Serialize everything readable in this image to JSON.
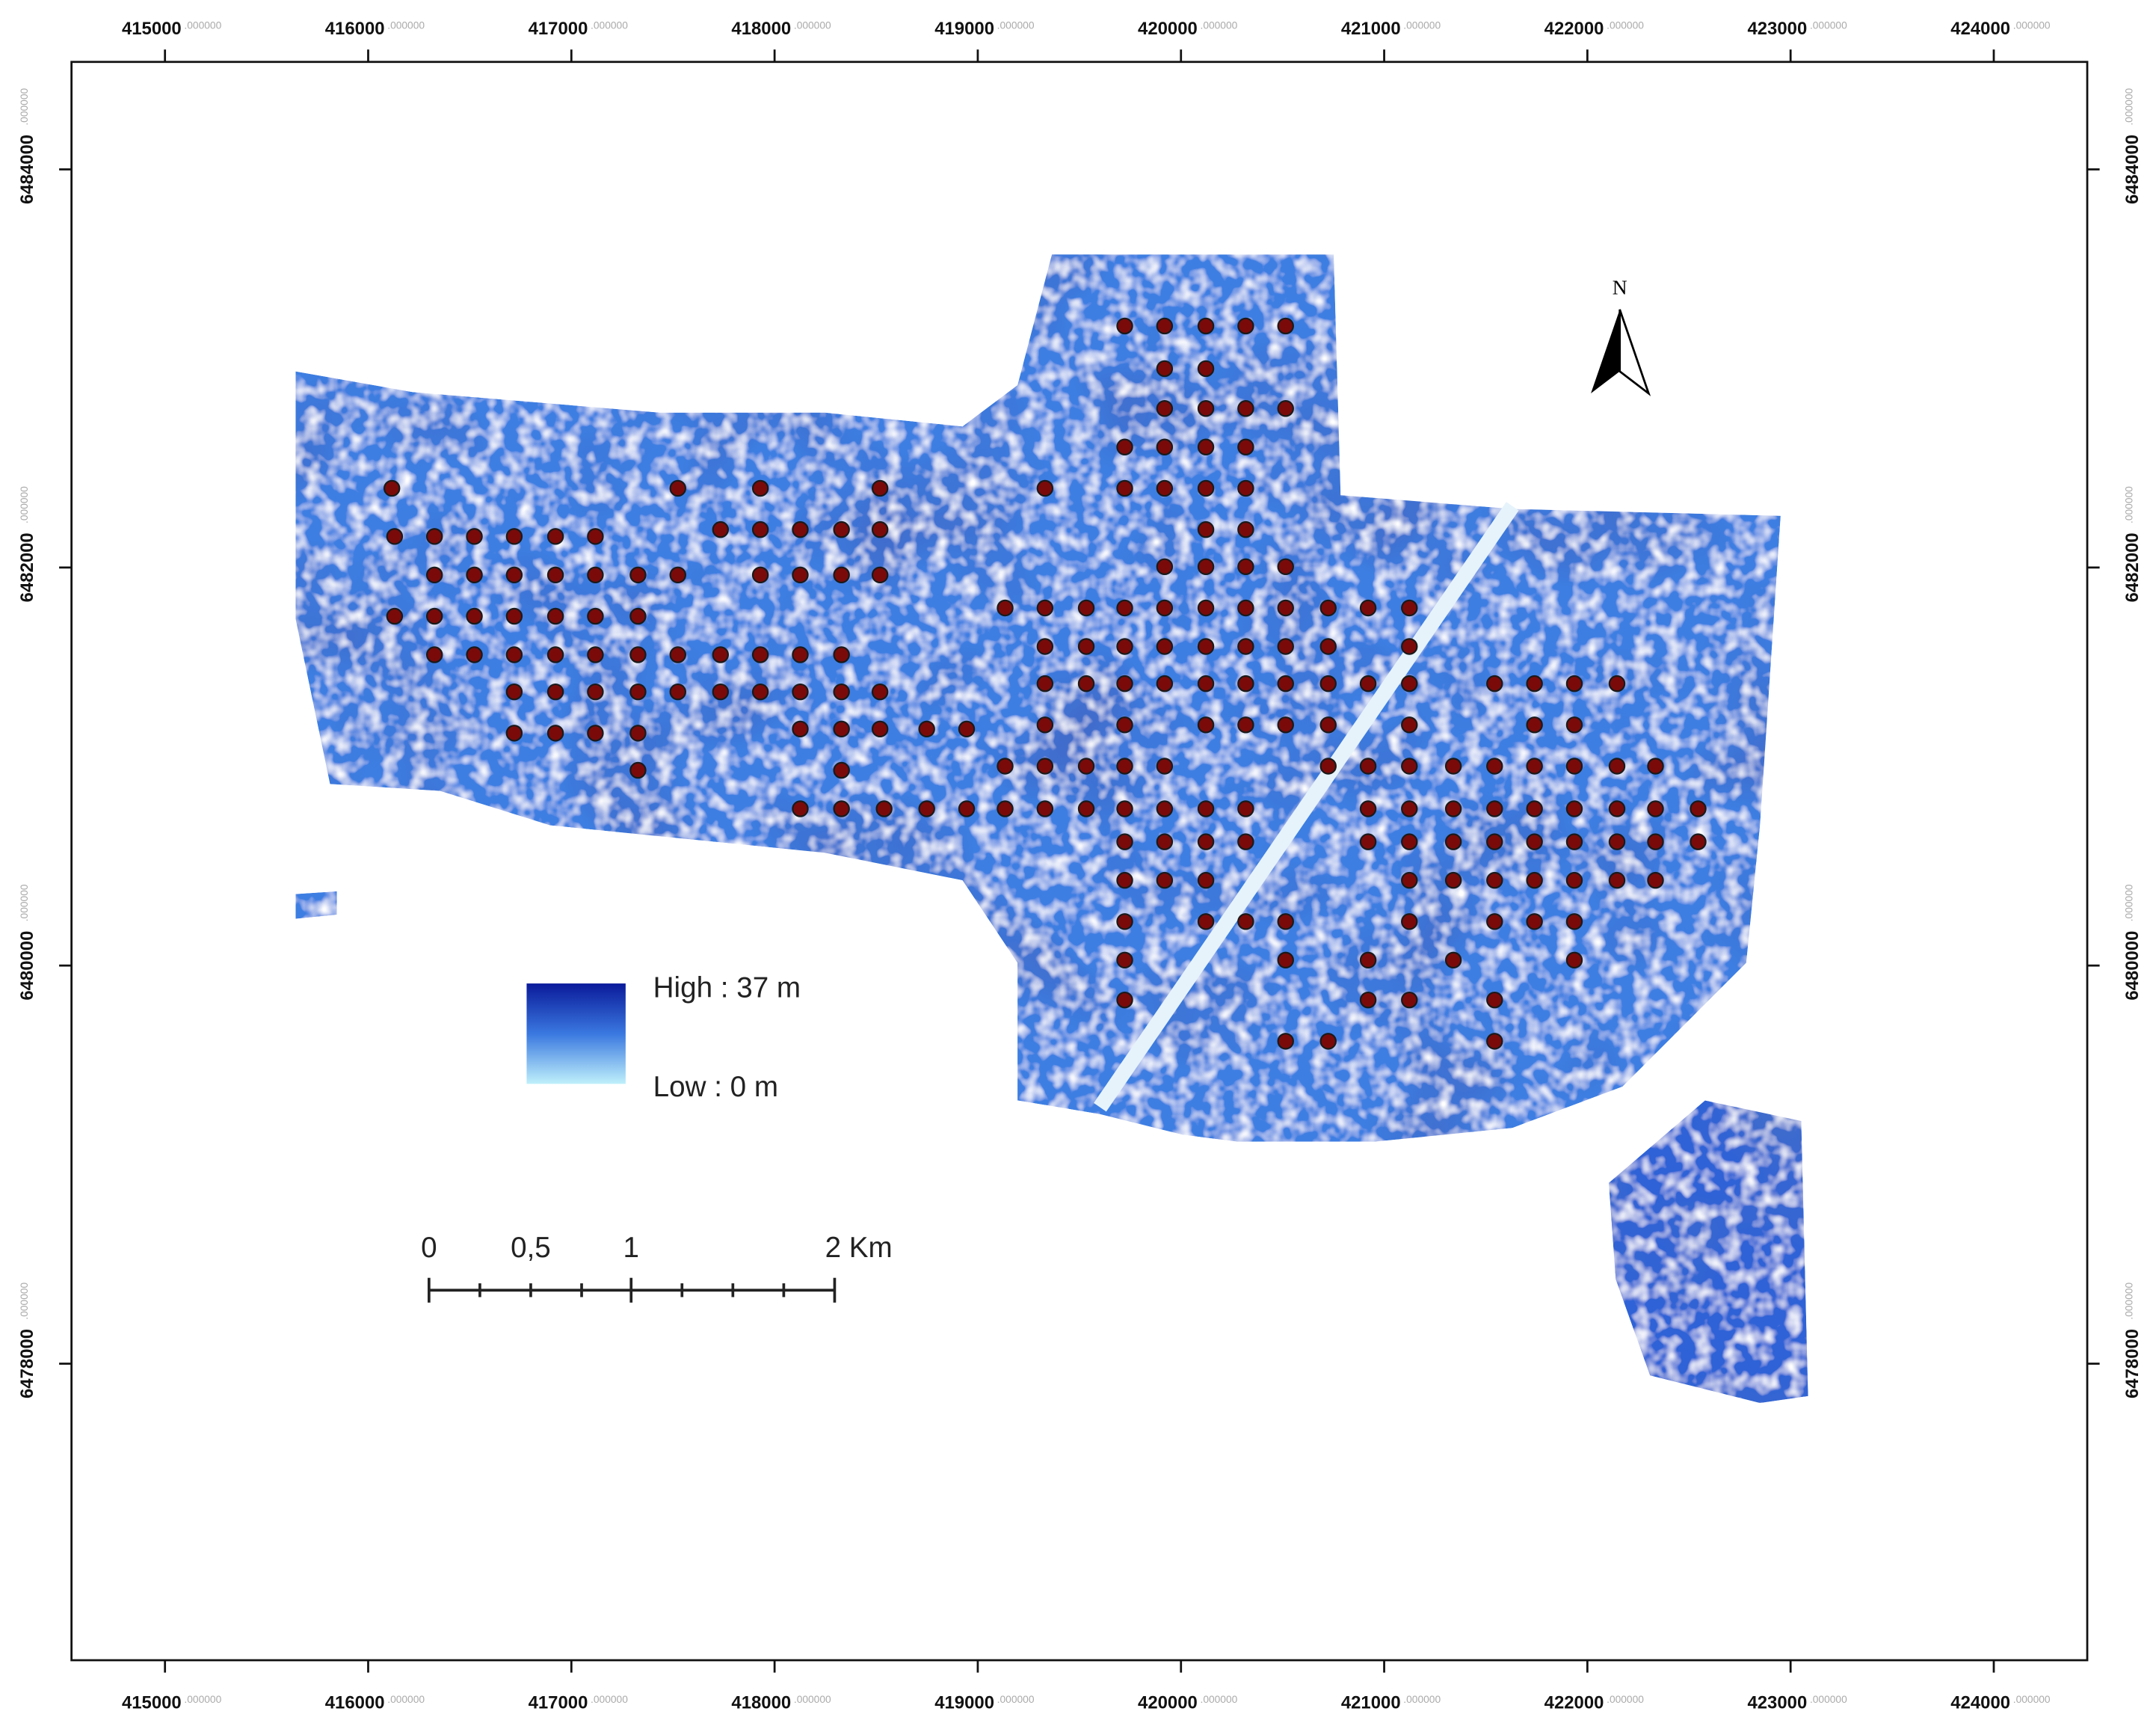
{
  "x_axis": {
    "lim": [
      414540,
      424460
    ],
    "ticks": [
      415000,
      416000,
      417000,
      418000,
      419000,
      420000,
      421000,
      422000,
      423000,
      424000
    ]
  },
  "y_axis": {
    "lim": [
      6476510,
      6484540
    ],
    "ticks": [
      6478000,
      6480000,
      6482000,
      6484000
    ]
  },
  "tick_suffix": ".000000",
  "north_label": "N",
  "legend": {
    "high": "High : 37 m",
    "low": "Low : 0 m"
  },
  "scale_bar": {
    "labels": [
      "0",
      "0,5",
      "1",
      "2 Km"
    ]
  }
}
